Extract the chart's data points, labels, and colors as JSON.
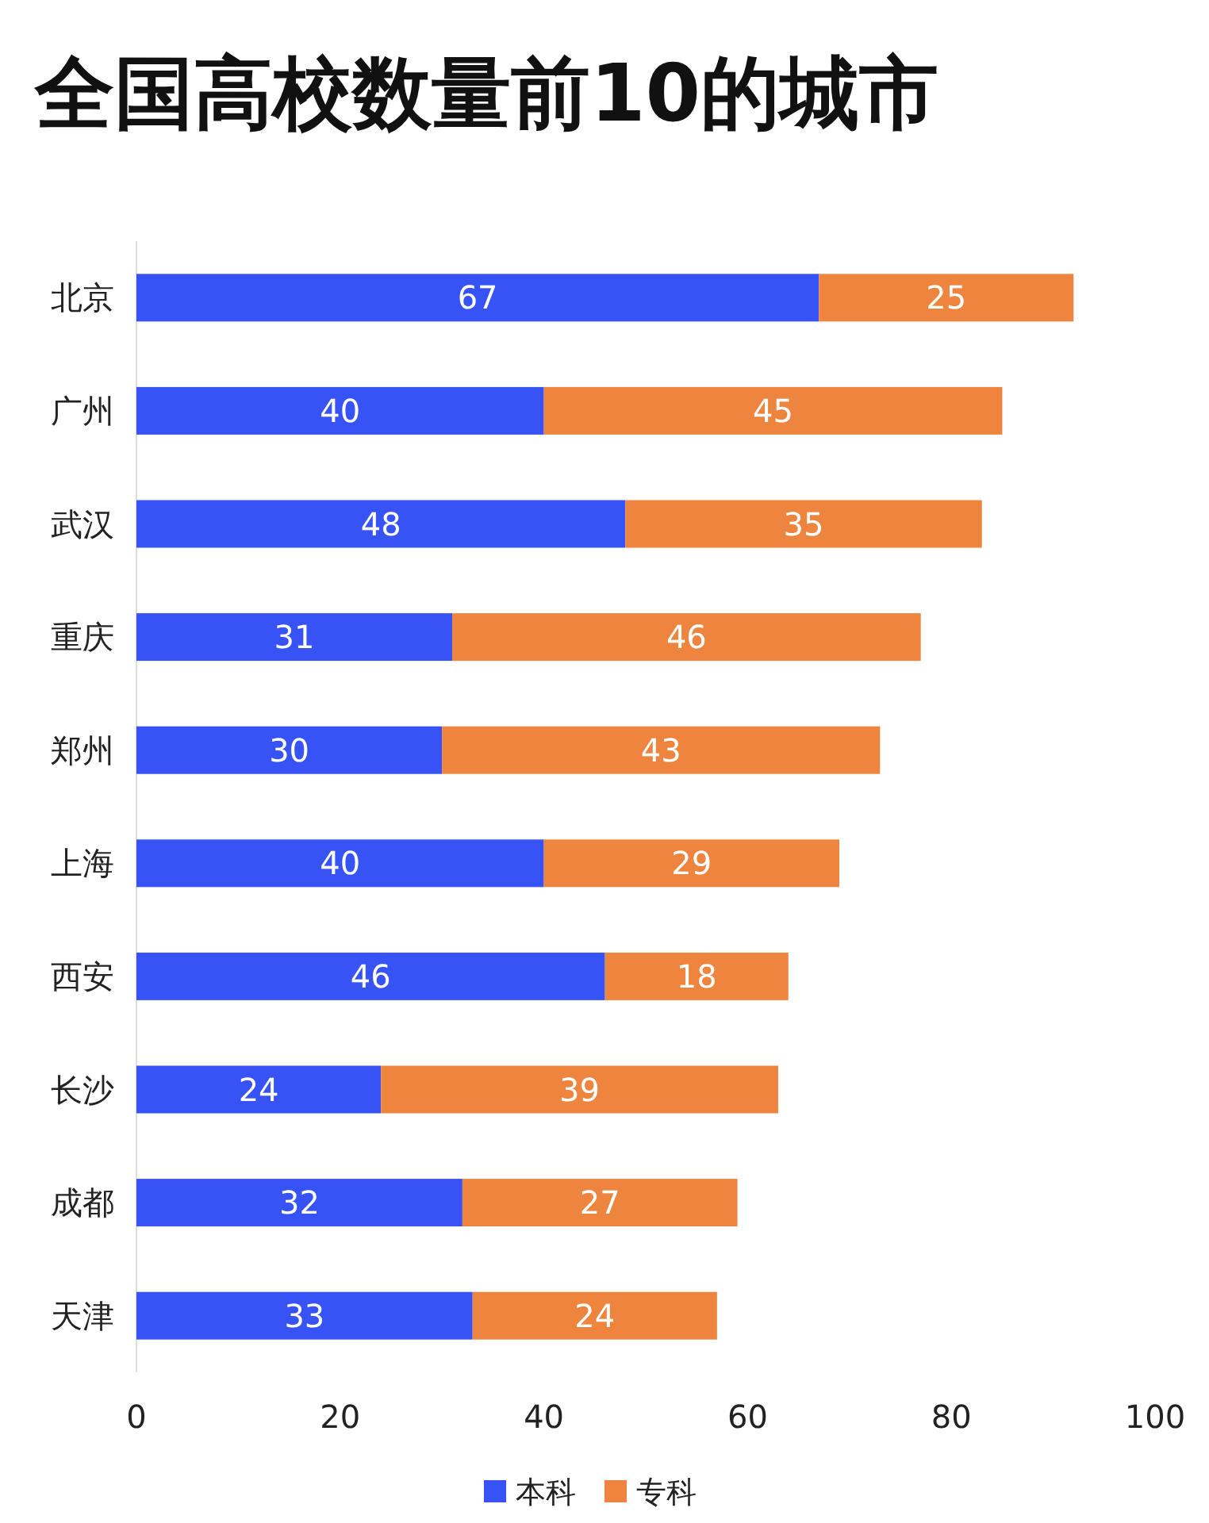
{
  "chart_data": {
    "type": "bar",
    "orientation": "horizontal",
    "stacked": true,
    "title": "全国高校数量前10的城市",
    "categories": [
      "北京",
      "广州",
      "武汉",
      "重庆",
      "郑州",
      "上海",
      "西安",
      "长沙",
      "成都",
      "天津"
    ],
    "series": [
      {
        "name": "本科",
        "color": "#3753f6",
        "values": [
          67,
          40,
          48,
          31,
          30,
          40,
          46,
          24,
          32,
          33
        ]
      },
      {
        "name": "专科",
        "color": "#ee853f",
        "values": [
          25,
          45,
          35,
          46,
          43,
          29,
          18,
          39,
          27,
          24
        ]
      }
    ],
    "xlim": [
      0,
      100
    ],
    "xticks": [
      0,
      20,
      40,
      60,
      80,
      100
    ],
    "data_labels": true,
    "grid": false,
    "legend": "bottom"
  }
}
